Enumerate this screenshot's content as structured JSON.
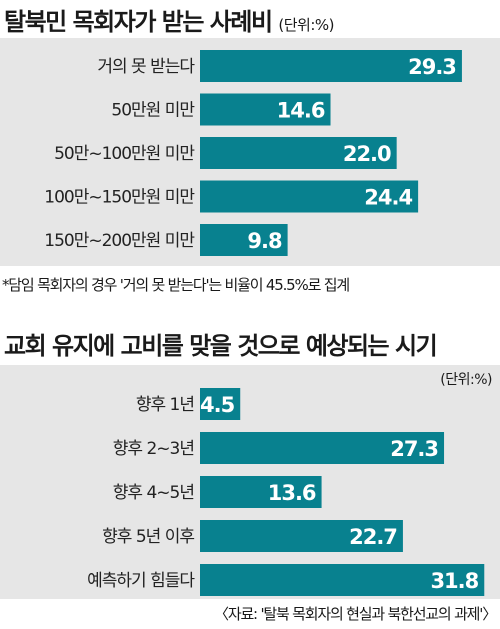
{
  "chart_data": [
    {
      "type": "bar",
      "orientation": "horizontal",
      "title": "탈북민 목회자가 받는 사례비",
      "unit": "(단위:%)",
      "categories": [
        "거의 못 받는다",
        "50만원 미만",
        "50만~100만원 미만",
        "100만~150만원 미만",
        "150만~200만원 미만"
      ],
      "values": [
        29.3,
        14.6,
        22.0,
        24.4,
        9.8
      ],
      "value_labels": [
        "29.3",
        "14.6",
        "22.0",
        "24.4",
        "9.8"
      ],
      "xlim": [
        0,
        33
      ],
      "bar_color": "#08818f",
      "note": "*담임 목회자의 경우 '거의 못 받는다'는 비율이 45.5%로 집계"
    },
    {
      "type": "bar",
      "orientation": "horizontal",
      "title": "교회 유지에 고비를 맞을 것으로 예상되는 시기",
      "unit": "(단위:%)",
      "categories": [
        "향후 1년",
        "향후 2~3년",
        "향후 4~5년",
        "향후 5년 이후",
        "예측하기 힘들다"
      ],
      "values": [
        4.5,
        27.3,
        13.6,
        22.7,
        31.8
      ],
      "value_labels": [
        "4.5",
        "27.3",
        "13.6",
        "22.7",
        "31.8"
      ],
      "xlim": [
        0,
        33
      ],
      "bar_color": "#08818f"
    }
  ],
  "source": "〈자료: '탈북 목회자의 현실과 북한선교의 과제'〉"
}
